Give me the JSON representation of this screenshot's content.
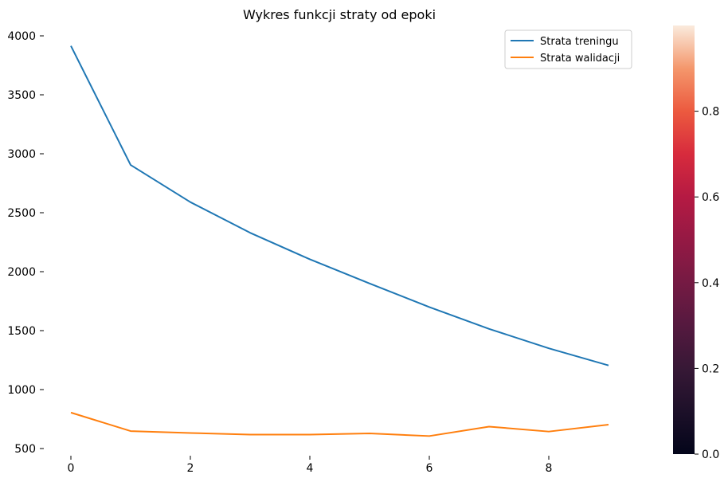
{
  "chart_data": {
    "type": "line",
    "title": "Wykres funkcji straty od epoki",
    "xlabel": "",
    "ylabel": "",
    "x": [
      0,
      1,
      2,
      3,
      4,
      5,
      6,
      7,
      8,
      9
    ],
    "xlim": [
      0,
      9
    ],
    "ylim": [
      500,
      4000
    ],
    "xticks": [
      0,
      2,
      4,
      6,
      8
    ],
    "xtick_labels": [
      "0",
      "2",
      "4",
      "6",
      "8"
    ],
    "yticks": [
      500,
      1000,
      1500,
      2000,
      2500,
      3000,
      3500,
      4000
    ],
    "ytick_labels": [
      "500",
      "1000",
      "1500",
      "2000",
      "2500",
      "3000",
      "3500",
      "4000"
    ],
    "grid": false,
    "legend_position": "top-right",
    "series": [
      {
        "name": "Strata treningu",
        "color": "#1f77b4",
        "values": [
          3915,
          2905,
          2590,
          2330,
          2105,
          1900,
          1700,
          1515,
          1350,
          1205
        ]
      },
      {
        "name": "Strata walidacji",
        "color": "#ff7f0e",
        "values": [
          805,
          648,
          632,
          618,
          618,
          628,
          606,
          686,
          644,
          703
        ]
      }
    ],
    "colorbar": {
      "colormap": "rocket",
      "range": [
        0.0,
        1.0
      ],
      "ticks": [
        0.0,
        0.2,
        0.4,
        0.6,
        0.8
      ],
      "tick_labels": [
        "0.0",
        "0.2",
        "0.4",
        "0.6",
        "0.8"
      ]
    }
  }
}
